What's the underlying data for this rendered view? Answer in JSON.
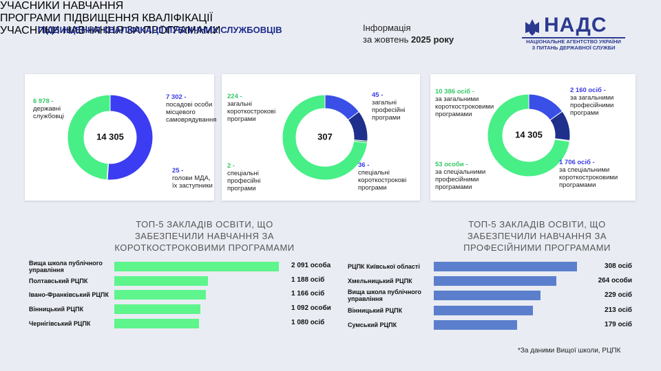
{
  "header": {
    "title": "ПІДВИЩЕННЯ КВАЛІФІКАЦІЇ ПУБЛІЧНИХ СЛУЖБОВЦІВ",
    "info_line1": "Інформація",
    "info_line2": "за жовтень ",
    "info_period": "2025 року"
  },
  "logo": {
    "name": "НАДС",
    "line1": "НАЦІОНАЛЬНЕ АГЕНТСТВО УКРАЇНИ",
    "line2": "З ПИТАНЬ ДЕРЖАВНОЇ СЛУЖБИ"
  },
  "footnote": "*За даними Вищої школи, РЦПК",
  "chart_data": [
    {
      "type": "pie",
      "title": "УЧАСНИКИ НАВЧАННЯ",
      "center_label": "14 305",
      "categories": [
        "посадові особи місцевого самоврядування",
        "голови МДА, їх заступники",
        "державні службовці"
      ],
      "values": [
        7302,
        25,
        6978
      ],
      "value_labels": [
        "7 302 -",
        "25 -",
        "6 978 -"
      ],
      "colors": [
        "#3c3cf2",
        "#1f2f8f",
        "#47ef86"
      ]
    },
    {
      "type": "pie",
      "title": "ПРОГРАМИ ПІДВИЩЕННЯ КВАЛІФІКАЦІЇ",
      "center_label": "307",
      "categories": [
        "загальні професійні програми",
        "спеціальні короткострокові програми",
        "спеціальні професійні програми",
        "загальні короткострокові програми"
      ],
      "values": [
        45,
        36,
        2,
        224
      ],
      "value_labels": [
        "45 -",
        "36 -",
        "2 -",
        "224 -"
      ],
      "colors": [
        "#3a4fe6",
        "#1e2f8c",
        "#2f9e5a",
        "#47ef86"
      ]
    },
    {
      "type": "pie",
      "title": "УЧАСНИКИ НАВЧАННЯ ЗА ПРОГРАМАМИ",
      "center_label": "14 305",
      "categories": [
        "за загальними професійними програми",
        "за спеціальними короткостроковими програмами",
        "за спеціальними професійними програмами",
        "за загальними короткостроковими програмами"
      ],
      "values": [
        2160,
        1706,
        53,
        10386
      ],
      "value_labels": [
        "2 160 осіб -",
        "1 706 осіб -",
        "53 особи -",
        "10 386 осіб -"
      ],
      "colors": [
        "#3a4fe6",
        "#1e2f8c",
        "#2f9e5a",
        "#47ef86"
      ]
    },
    {
      "type": "bar",
      "title": "ТОП-5 ЗАКЛАДІВ ОСВІТИ, ЩО ЗАБЕЗПЕЧИЛИ НАВЧАННЯ ЗА КОРОТКОСТРОКОВИМИ ПРОГРАМАМИ",
      "categories": [
        "Вища школа публічного управління",
        "Полтавський РЦПК",
        "Івано-Франківський РЦПК",
        "Вінницький РЦПК",
        "Чернігівський РЦПК"
      ],
      "values": [
        2091,
        1188,
        1166,
        1092,
        1080
      ],
      "value_labels": [
        "2 091 особа",
        "1 188 осіб",
        "1 166 осіб",
        "1 092 особи",
        "1 080 осіб"
      ],
      "color": "#5ef58c"
    },
    {
      "type": "bar",
      "title": "ТОП-5 ЗАКЛАДІВ ОСВІТИ, ЩО ЗАБЕЗПЕЧИЛИ НАВЧАННЯ ЗА ПРОФЕСІЙНИМИ ПРОГРАМАМИ",
      "categories": [
        "РЦПК Київської області",
        "Хмельницький РЦПК",
        "Вища школа публічного управління",
        "Вінницький РЦПК",
        "Сумський РЦПК"
      ],
      "values": [
        308,
        264,
        229,
        213,
        179
      ],
      "value_labels": [
        "308 осіб",
        "264 особи",
        "229 осіб",
        "213 осіб",
        "179 осіб"
      ],
      "color": "#5b7fcc"
    }
  ]
}
